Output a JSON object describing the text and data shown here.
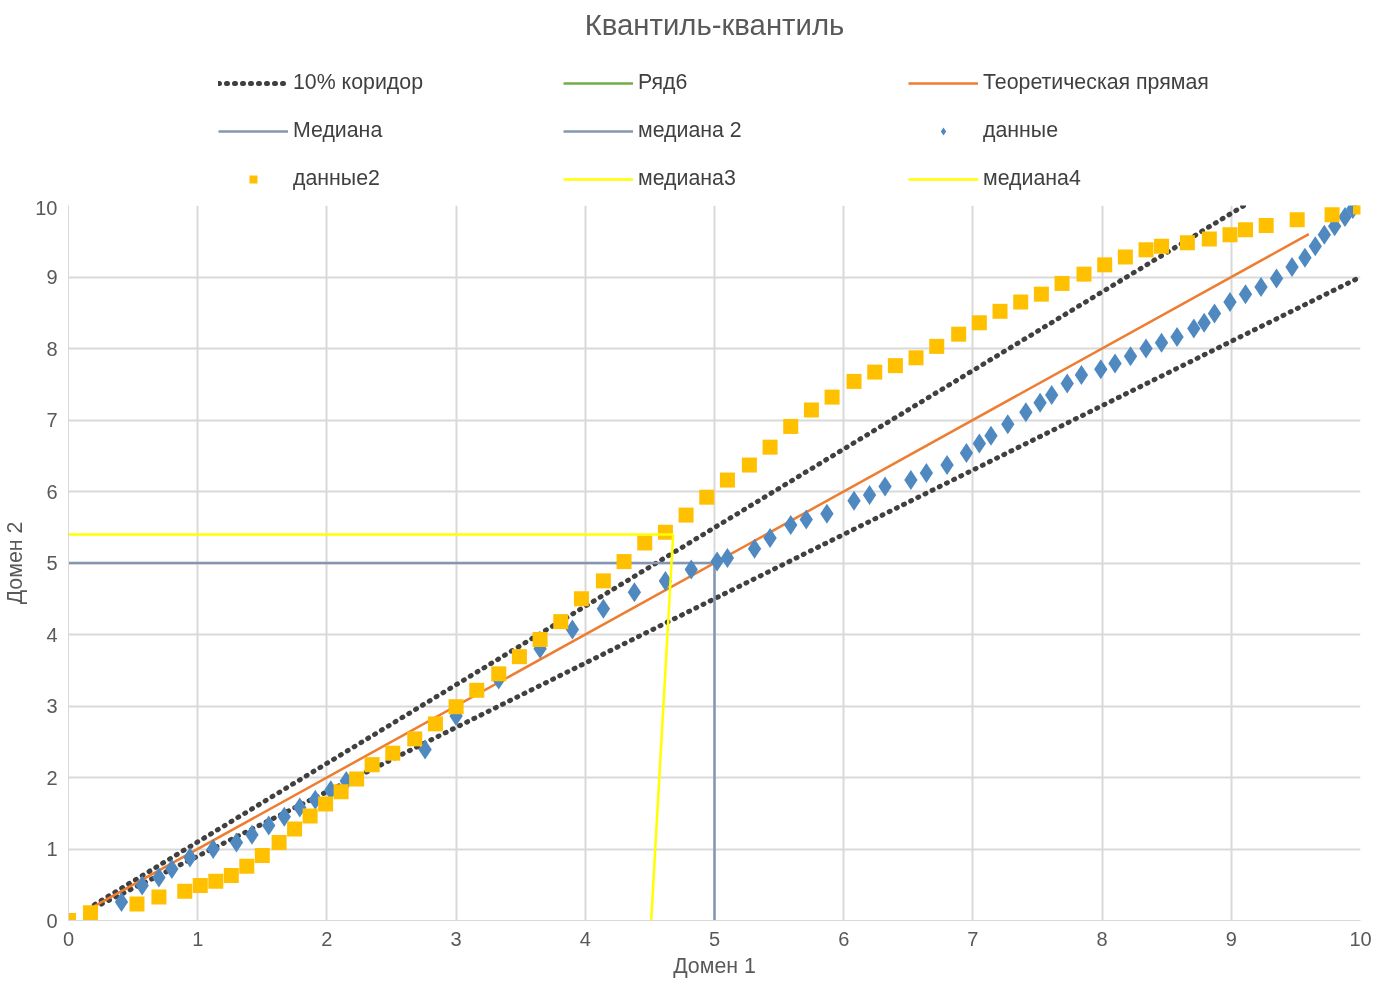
{
  "chart_data": {
    "type": "scatter",
    "title": "Квантиль-квантиль",
    "xlabel": "Домен 1",
    "ylabel": "Домен 2",
    "xlim": [
      0,
      10
    ],
    "ylim": [
      0,
      10
    ],
    "xticks": [
      0,
      1,
      2,
      3,
      4,
      5,
      6,
      7,
      8,
      9,
      10
    ],
    "yticks": [
      0,
      1,
      2,
      3,
      4,
      5,
      6,
      7,
      8,
      9,
      10
    ],
    "grid": true,
    "legend": "top",
    "series": [
      {
        "name": "10% коридор",
        "type": "line",
        "line_style": "dotted",
        "color": "#404040",
        "x": [
          0.2,
          9.1,
          null,
          0.2,
          10
        ],
        "values": [
          0.22,
          10,
          null,
          0.18,
          9
        ]
      },
      {
        "name": "Ряд6",
        "type": "line",
        "line_style": "solid",
        "color": "#70ad47"
      },
      {
        "name": "Теоретическая прямая",
        "type": "line",
        "line_style": "solid",
        "color": "#ed7d31",
        "x": [
          0.2,
          9.6
        ],
        "values": [
          0.2,
          9.6
        ]
      },
      {
        "name": "Медиана",
        "type": "line",
        "line_style": "solid",
        "color": "#8497b0",
        "x": [
          0,
          5
        ],
        "values": [
          5,
          5
        ]
      },
      {
        "name": "медиана 2",
        "type": "line",
        "line_style": "solid",
        "color": "#8497b0",
        "x": [
          5,
          5
        ],
        "values": [
          0,
          5
        ]
      },
      {
        "name": "данные",
        "marker": "diamond",
        "color": "#4f89c0",
        "x": [
          0.41,
          0.57,
          0.7,
          0.8,
          0.94,
          1.12,
          1.3,
          1.42,
          1.55,
          1.67,
          1.79,
          1.91,
          2.03,
          2.15,
          2.76,
          3.0,
          3.33,
          3.65,
          3.9,
          4.14,
          4.38,
          4.62,
          4.82,
          5.02,
          5.1,
          5.31,
          5.43,
          5.59,
          5.71,
          5.87,
          6.08,
          6.2,
          6.32,
          6.52,
          6.64,
          6.8,
          6.95,
          7.05,
          7.14,
          7.27,
          7.41,
          7.52,
          7.61,
          7.73,
          7.84,
          7.99,
          8.1,
          8.22,
          8.34,
          8.46,
          8.58,
          8.71,
          8.79,
          8.87,
          8.99,
          9.11,
          9.23,
          9.35,
          9.47,
          9.57,
          9.65,
          9.72,
          9.8,
          9.88,
          9.94
        ],
        "values": [
          0.26,
          0.49,
          0.6,
          0.72,
          0.88,
          1.0,
          1.09,
          1.2,
          1.33,
          1.45,
          1.58,
          1.69,
          1.82,
          1.95,
          2.39,
          2.86,
          3.37,
          3.8,
          4.07,
          4.36,
          4.59,
          4.75,
          4.91,
          5.02,
          5.07,
          5.2,
          5.35,
          5.53,
          5.61,
          5.69,
          5.87,
          5.95,
          6.07,
          6.16,
          6.26,
          6.37,
          6.54,
          6.67,
          6.78,
          6.94,
          7.11,
          7.24,
          7.35,
          7.51,
          7.63,
          7.71,
          7.79,
          7.89,
          8.0,
          8.08,
          8.16,
          8.28,
          8.36,
          8.49,
          8.65,
          8.76,
          8.86,
          8.98,
          9.14,
          9.27,
          9.43,
          9.59,
          9.71,
          9.84,
          9.95
        ]
      },
      {
        "name": "данные2",
        "marker": "square",
        "color": "#ffc000",
        "x": [
          0,
          0.17,
          0.53,
          0.7,
          0.9,
          1.02,
          1.14,
          1.26,
          1.38,
          1.5,
          1.63,
          1.75,
          1.87,
          1.99,
          2.11,
          2.23,
          2.35,
          2.51,
          2.68,
          2.84,
          3.0,
          3.16,
          3.33,
          3.49,
          3.65,
          3.81,
          3.97,
          4.14,
          4.3,
          4.46,
          4.62,
          4.78,
          4.94,
          5.1,
          5.27,
          5.43,
          5.59,
          5.75,
          5.91,
          6.08,
          6.24,
          6.4,
          6.56,
          6.72,
          6.89,
          7.05,
          7.21,
          7.37,
          7.53,
          7.69,
          7.86,
          8.02,
          8.18,
          8.34,
          8.46,
          8.66,
          8.83,
          8.99,
          9.11,
          9.27,
          9.51,
          9.78,
          10
        ],
        "values": [
          0,
          0.11,
          0.23,
          0.33,
          0.41,
          0.49,
          0.55,
          0.63,
          0.76,
          0.91,
          1.09,
          1.28,
          1.46,
          1.63,
          1.8,
          1.98,
          2.18,
          2.34,
          2.54,
          2.75,
          2.99,
          3.22,
          3.45,
          3.69,
          3.93,
          4.18,
          4.5,
          4.75,
          5.02,
          5.28,
          5.43,
          5.67,
          5.92,
          6.16,
          6.37,
          6.62,
          6.91,
          7.14,
          7.32,
          7.54,
          7.67,
          7.76,
          7.87,
          8.03,
          8.2,
          8.36,
          8.52,
          8.65,
          8.76,
          8.91,
          9.04,
          9.17,
          9.28,
          9.38,
          9.43,
          9.48,
          9.53,
          9.59,
          9.66,
          9.72,
          9.8,
          9.87,
          9.98
        ]
      },
      {
        "name": "медиана3",
        "type": "line",
        "line_style": "solid",
        "color": "#ffff00",
        "x": [
          0,
          4.68
        ],
        "values": [
          5.4,
          5.4
        ]
      },
      {
        "name": "медиана4",
        "type": "line",
        "line_style": "solid",
        "color": "#ffff00",
        "x": [
          4.51,
          4.68
        ],
        "values": [
          0,
          5.4
        ]
      }
    ]
  }
}
